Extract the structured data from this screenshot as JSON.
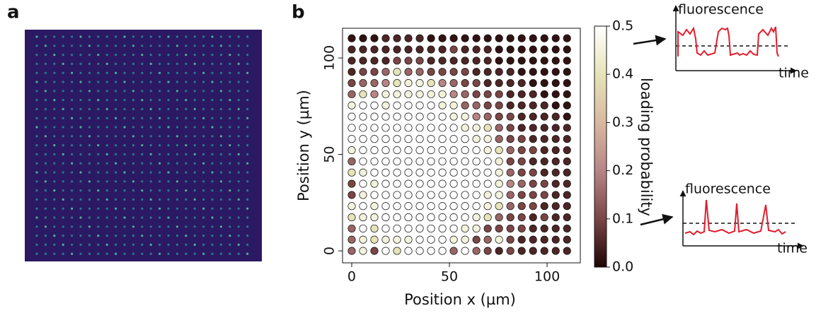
{
  "panel_labels": [
    "a",
    "b"
  ],
  "insets": [
    {
      "ylabel": "fluorescence",
      "xlabel": "time"
    },
    {
      "ylabel": "fluorescence",
      "xlabel": "time"
    }
  ],
  "chart_data": {
    "type": "scatter",
    "xlabel": "Position x (µm)",
    "ylabel": "Position y (µm)",
    "x": [
      0,
      5.8,
      11.6,
      17.4,
      23.2,
      29,
      34.8,
      40.6,
      46.4,
      52.2,
      58,
      63.8,
      69.6,
      75.4,
      81.2,
      87,
      92.8,
      98.6,
      104.4,
      110.2
    ],
    "y": [
      0,
      5.8,
      11.6,
      17.4,
      23.2,
      29,
      34.8,
      40.6,
      46.4,
      52.2,
      58,
      63.8,
      69.6,
      75.4,
      81.2,
      87,
      92.8,
      98.6,
      104.4,
      110.2
    ],
    "values": [
      [
        0.15,
        0.45,
        0.1,
        0.5,
        0.4,
        0.5,
        0.5,
        0.5,
        0.5,
        0.15,
        0.5,
        0.15,
        0.1,
        0.05,
        0.1,
        0.05,
        0.05,
        0.05,
        0.05,
        0.05
      ],
      [
        0.15,
        0.45,
        0.4,
        0.45,
        0.45,
        0.45,
        0.5,
        0.5,
        0.5,
        0.45,
        0.45,
        0.1,
        0.15,
        0.45,
        0.1,
        0.05,
        0.05,
        0.05,
        0.05,
        0.05
      ],
      [
        0.15,
        0.5,
        0.4,
        0.5,
        0.5,
        0.5,
        0.5,
        0.5,
        0.5,
        0.5,
        0.45,
        0.45,
        0.1,
        0.1,
        0.1,
        0.1,
        0.05,
        0.05,
        0.05,
        0.05
      ],
      [
        0.4,
        0.45,
        0.45,
        0.5,
        0.5,
        0.5,
        0.5,
        0.5,
        0.5,
        0.5,
        0.5,
        0.45,
        0.4,
        0.15,
        0.1,
        0.1,
        0.05,
        0.1,
        0.05,
        0.05
      ],
      [
        0.45,
        0.5,
        0.45,
        0.5,
        0.5,
        0.5,
        0.5,
        0.5,
        0.5,
        0.5,
        0.5,
        0.5,
        0.45,
        0.4,
        0.15,
        0.1,
        0.1,
        0.05,
        0.05,
        0.05
      ],
      [
        0.1,
        0.45,
        0.5,
        0.5,
        0.5,
        0.5,
        0.5,
        0.5,
        0.5,
        0.5,
        0.5,
        0.5,
        0.45,
        0.45,
        0.15,
        0.1,
        0.1,
        0.1,
        0.05,
        0.05
      ],
      [
        0.1,
        0.5,
        0.45,
        0.5,
        0.5,
        0.5,
        0.5,
        0.5,
        0.5,
        0.5,
        0.5,
        0.5,
        0.5,
        0.45,
        0.2,
        0.15,
        0.1,
        0.1,
        0.05,
        0.05
      ],
      [
        0.4,
        0.45,
        0.5,
        0.5,
        0.5,
        0.5,
        0.5,
        0.5,
        0.5,
        0.5,
        0.5,
        0.5,
        0.5,
        0.45,
        0.15,
        0.1,
        0.1,
        0.05,
        0.05,
        0.05
      ],
      [
        0.15,
        0.5,
        0.5,
        0.5,
        0.5,
        0.5,
        0.5,
        0.5,
        0.5,
        0.5,
        0.5,
        0.5,
        0.5,
        0.45,
        0.1,
        0.1,
        0.05,
        0.05,
        0.05,
        0.05
      ],
      [
        0.45,
        0.5,
        0.5,
        0.5,
        0.5,
        0.5,
        0.5,
        0.5,
        0.5,
        0.5,
        0.5,
        0.5,
        0.45,
        0.4,
        0.15,
        0.1,
        0.1,
        0.05,
        0.05,
        0.05
      ],
      [
        0.5,
        0.5,
        0.5,
        0.5,
        0.5,
        0.5,
        0.5,
        0.5,
        0.5,
        0.5,
        0.5,
        0.45,
        0.45,
        0.15,
        0.1,
        0.1,
        0.05,
        0.05,
        0.05,
        0.05
      ],
      [
        0.5,
        0.5,
        0.5,
        0.5,
        0.5,
        0.5,
        0.5,
        0.5,
        0.5,
        0.5,
        0.45,
        0.45,
        0.4,
        0.15,
        0.1,
        0.05,
        0.05,
        0.05,
        0.05,
        0.05
      ],
      [
        0.5,
        0.5,
        0.5,
        0.5,
        0.5,
        0.5,
        0.5,
        0.5,
        0.5,
        0.45,
        0.45,
        0.2,
        0.15,
        0.1,
        0.1,
        0.05,
        0.05,
        0.05,
        0.05,
        0.02
      ],
      [
        0.45,
        0.5,
        0.5,
        0.45,
        0.5,
        0.5,
        0.5,
        0.5,
        0.45,
        0.45,
        0.15,
        0.15,
        0.1,
        0.1,
        0.05,
        0.05,
        0.05,
        0.05,
        0.02,
        0.02
      ],
      [
        0.15,
        0.4,
        0.2,
        0.45,
        0.45,
        0.45,
        0.45,
        0.45,
        0.45,
        0.2,
        0.15,
        0.1,
        0.1,
        0.1,
        0.05,
        0.05,
        0.05,
        0.02,
        0.02,
        0.02
      ],
      [
        0.1,
        0.15,
        0.15,
        0.2,
        0.4,
        0.45,
        0.45,
        0.4,
        0.2,
        0.15,
        0.1,
        0.1,
        0.05,
        0.05,
        0.05,
        0.05,
        0.02,
        0.02,
        0.02,
        0.02
      ],
      [
        0.05,
        0.1,
        0.1,
        0.15,
        0.4,
        0.15,
        0.15,
        0.1,
        0.1,
        0.1,
        0.1,
        0.05,
        0.05,
        0.05,
        0.05,
        0.02,
        0.02,
        0.02,
        0.02,
        0.02
      ],
      [
        0.05,
        0.05,
        0.05,
        0.05,
        0.1,
        0.1,
        0.1,
        0.05,
        0.05,
        0.05,
        0.05,
        0.05,
        0.05,
        0.02,
        0.02,
        0.02,
        0.02,
        0.02,
        0.02,
        0.02
      ],
      [
        0.05,
        0.05,
        0.05,
        0.05,
        0.05,
        0.05,
        0.05,
        0.05,
        0.05,
        0.1,
        0.05,
        0.05,
        0.05,
        0.02,
        0.02,
        0.02,
        0.02,
        0.02,
        0.02,
        0.02
      ],
      [
        0.02,
        0.02,
        0.02,
        0.05,
        0.05,
        0.05,
        0.05,
        0.02,
        0.02,
        0.02,
        0.02,
        0.02,
        0.02,
        0.02,
        0.02,
        0.02,
        0.02,
        0.02,
        0.02,
        0.02
      ]
    ],
    "xlim": [
      -4.7,
      117
    ],
    "ylim": [
      -6.2,
      115.4
    ],
    "xticks": [
      0,
      50,
      100
    ],
    "yticks": [
      0,
      50,
      100
    ],
    "colorbar": {
      "label": "loading probability",
      "clim": [
        0,
        0.5
      ],
      "ticks": [
        {
          "value": 0,
          "label": "0.0"
        },
        0.1,
        0.2,
        0.3,
        0.4,
        0.5
      ],
      "colormap": [
        "#1f0505",
        "#7a4545",
        "#b88585",
        "#d9b8a0",
        "#e6e4b8",
        "#ffffff"
      ]
    }
  }
}
